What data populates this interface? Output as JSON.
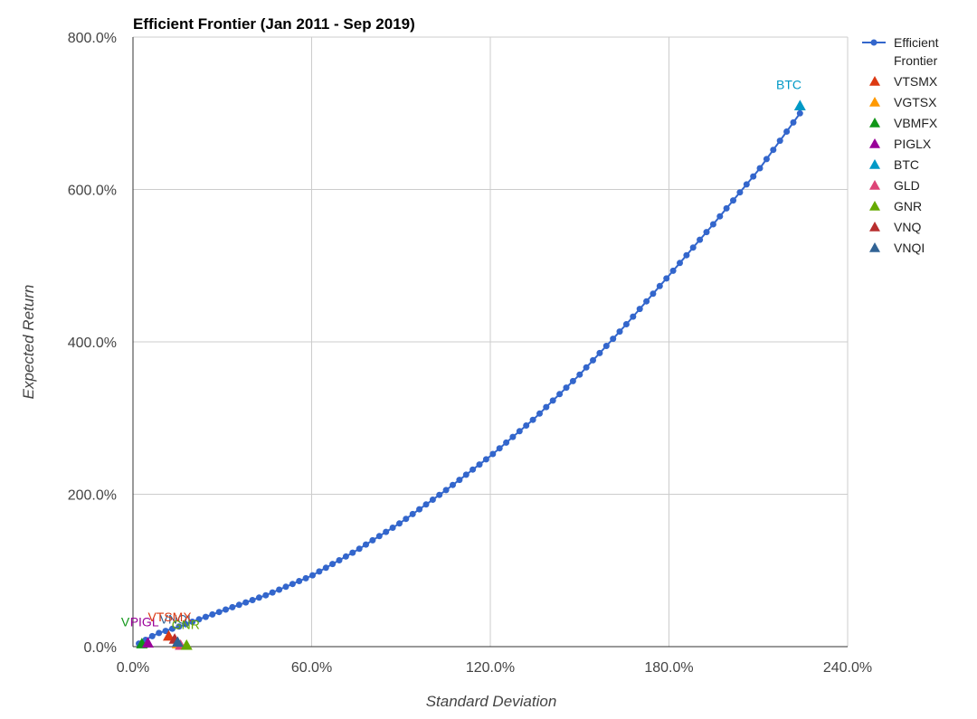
{
  "chart_data": {
    "type": "line",
    "title": "Efficient Frontier (Jan 2011 - Sep 2019)",
    "xlabel": "Standard Deviation",
    "ylabel": "Expected Return",
    "xlim": [
      0,
      240
    ],
    "ylim": [
      0,
      800
    ],
    "x_ticks": [
      "0.0%",
      "60.0%",
      "120.0%",
      "180.0%",
      "240.0%"
    ],
    "y_ticks": [
      "0.0%",
      "200.0%",
      "400.0%",
      "600.0%",
      "800.0%"
    ],
    "grid": true,
    "legend_position": "right",
    "frontier": {
      "name": "Efficient Frontier",
      "color": "#3366cc",
      "anchors": [
        [
          2,
          4
        ],
        [
          8,
          17
        ],
        [
          16,
          27
        ],
        [
          30,
          47
        ],
        [
          45,
          68
        ],
        [
          60,
          93
        ],
        [
          75,
          126
        ],
        [
          90,
          163
        ],
        [
          105,
          205
        ],
        [
          120,
          250
        ],
        [
          135,
          300
        ],
        [
          150,
          357
        ],
        [
          165,
          420
        ],
        [
          180,
          487
        ],
        [
          195,
          555
        ],
        [
          210,
          625
        ],
        [
          224,
          700
        ]
      ]
    },
    "assets": [
      {
        "name": "VTSMX",
        "color": "#dc3912",
        "x": 12,
        "y": 14
      },
      {
        "name": "VGTSX",
        "color": "#ff9900",
        "x": 15,
        "y": 4
      },
      {
        "name": "VBMFX",
        "color": "#109618",
        "x": 3,
        "y": 4
      },
      {
        "name": "PIGLX",
        "color": "#990099",
        "x": 5,
        "y": 5
      },
      {
        "name": "BTC",
        "color": "#0099c6",
        "x": 224,
        "y": 710
      },
      {
        "name": "GLD",
        "color": "#dd4477",
        "x": 16,
        "y": 2
      },
      {
        "name": "GNR",
        "color": "#66aa00",
        "x": 18,
        "y": 2
      },
      {
        "name": "VNQ",
        "color": "#b82e2e",
        "x": 14,
        "y": 10
      },
      {
        "name": "VNQI",
        "color": "#316395",
        "x": 15,
        "y": 6
      }
    ],
    "point_labels": [
      {
        "text": "BTC",
        "color": "#0099c6",
        "x": 216,
        "y": 732
      },
      {
        "text": "V",
        "color": "#109618",
        "x": -4,
        "y": 27
      },
      {
        "text": "PIGL",
        "color": "#990099",
        "x": -1,
        "y": 27
      },
      {
        "text": "VNQI",
        "color": "#316395",
        "x": 9,
        "y": 30
      },
      {
        "text": "GNR",
        "color": "#66aa00",
        "x": 13,
        "y": 23
      },
      {
        "text": "VTSMX",
        "color": "#dc3912",
        "x": 5,
        "y": 33
      }
    ]
  }
}
